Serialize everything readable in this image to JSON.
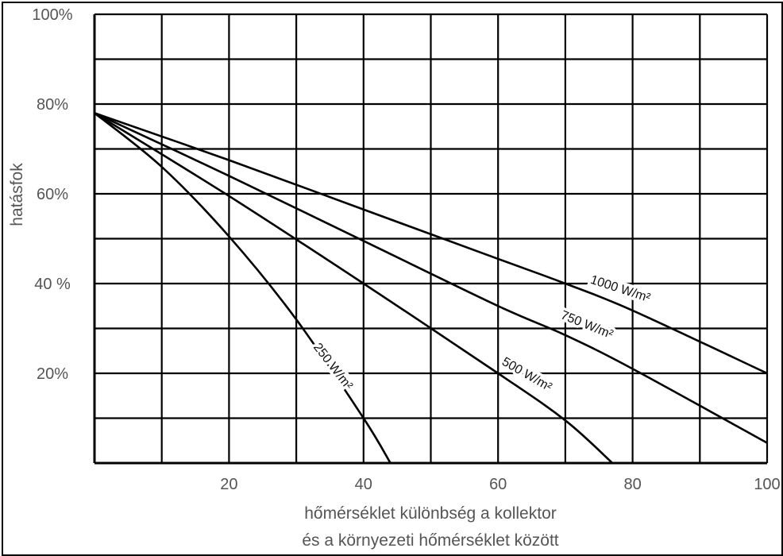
{
  "chart_data": {
    "type": "line",
    "xlabel_lines": [
      "hőmérséklet különbség a kollektor",
      "és a környezeti hőmérséklet között"
    ],
    "ylabel": "hatásfok",
    "xlim": [
      0,
      100
    ],
    "ylim": [
      0,
      100
    ],
    "xticks": [
      20,
      40,
      60,
      80,
      100
    ],
    "xtick_labels": [
      "20",
      "40",
      "60",
      "80",
      "100"
    ],
    "yticks": [
      20,
      40,
      60,
      80,
      100
    ],
    "ytick_labels": [
      "20%",
      "40 %",
      "60%",
      "80%",
      "100%"
    ],
    "grid": true,
    "line_color": "#000000",
    "series": [
      {
        "name": "1000 W/m²",
        "x": [
          0,
          20,
          40,
          60,
          70,
          80,
          100
        ],
        "y": [
          78,
          67.5,
          56.5,
          45.5,
          40,
          34,
          20
        ]
      },
      {
        "name": "750 W/m²",
        "x": [
          0,
          20,
          40,
          60,
          70,
          80,
          100
        ],
        "y": [
          78,
          64,
          49.5,
          35,
          28.5,
          21,
          4.5
        ]
      },
      {
        "name": "500 W/m²",
        "x": [
          0,
          20,
          40,
          60,
          70,
          77
        ],
        "y": [
          78,
          59.5,
          40,
          20,
          9.5,
          0
        ]
      },
      {
        "name": "250 W/m²",
        "x": [
          0,
          10,
          20,
          30,
          40,
          44
        ],
        "y": [
          78,
          66,
          50.5,
          32,
          10,
          0
        ]
      }
    ]
  }
}
